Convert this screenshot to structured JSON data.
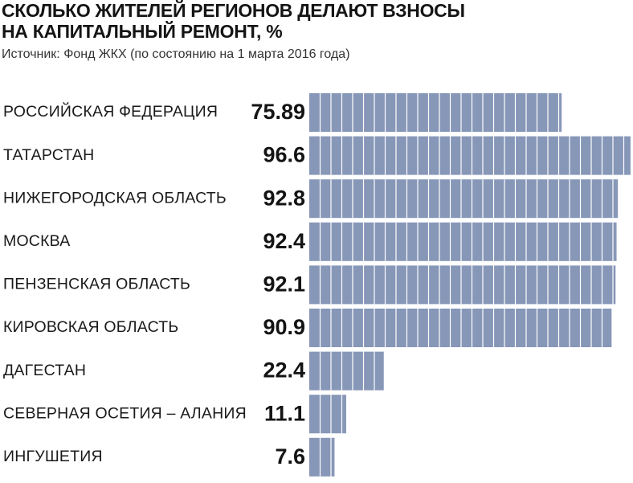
{
  "header": {
    "title_line1": "СКОЛЬКО ЖИТЕЛЕЙ РЕГИОНОВ ДЕЛАЮТ ВЗНОСЫ",
    "title_line2": "НА КАПИТАЛЬНЫЙ РЕМОНТ, %",
    "source": "Источник: Фонд ЖКХ (по состоянию на 1 марта 2016 года)"
  },
  "colors": {
    "bar": "#8797b8",
    "bar_stripe": "#ffffff",
    "text": "#1a1a1a"
  },
  "chart_data": {
    "type": "bar",
    "orientation": "horizontal",
    "title": "СКОЛЬКО ЖИТЕЛЕЙ РЕГИОНОВ ДЕЛАЮТ ВЗНОСЫ НА КАПИТАЛЬНЫЙ РЕМОНТ, %",
    "subtitle": "Источник: Фонд ЖКХ (по состоянию на 1 марта 2016 года)",
    "categories": [
      "РОССИЙСКАЯ ФЕДЕРАЦИЯ",
      "ТАТАРСТАН",
      "НИЖЕГОРОДСКАЯ ОБЛАСТЬ",
      "МОСКВА",
      "ПЕНЗЕНСКАЯ ОБЛАСТЬ",
      "КИРОВСКАЯ ОБЛАСТЬ",
      "ДАГЕСТАН",
      "СЕВЕРНАЯ ОСЕТИЯ – АЛАНИЯ",
      "ИНГУШЕТИЯ"
    ],
    "value_labels": [
      "75.89",
      "96.6",
      "92.8",
      "92.4",
      "92.1",
      "90.9",
      "22.4",
      "11.1",
      "7.6"
    ],
    "values": [
      75.89,
      96.6,
      92.8,
      92.4,
      92.1,
      90.9,
      22.4,
      11.1,
      7.6
    ],
    "xlim": [
      0,
      100
    ],
    "grid": false,
    "legend": "none",
    "bar_style": "striped"
  }
}
